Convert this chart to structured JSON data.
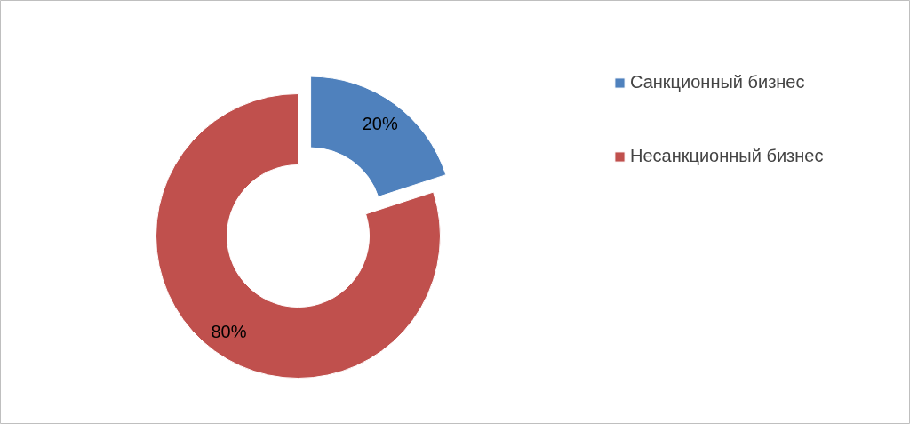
{
  "chart_data": {
    "type": "donut",
    "categories": [
      "Санкционный бизнес",
      "Несанкционный бизнес"
    ],
    "values": [
      20,
      80
    ],
    "colors": [
      "#4f81bd",
      "#c0504d"
    ],
    "value_labels": [
      "20%",
      "80%"
    ],
    "legend": "right"
  }
}
